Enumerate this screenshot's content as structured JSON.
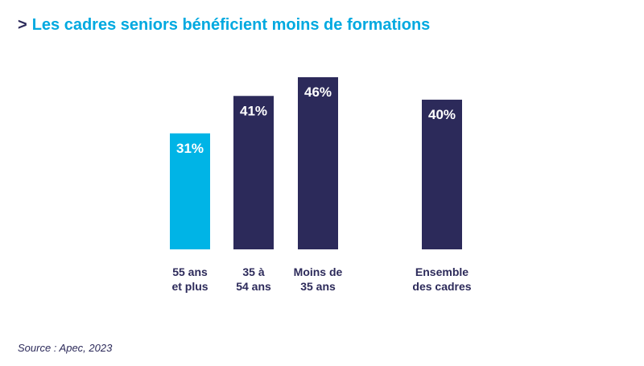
{
  "title": {
    "arrow": ">",
    "text": "Les cadres seniors bénéficient moins de formations"
  },
  "source": "Source : Apec, 2023",
  "colors": {
    "highlight": "#00b4e6",
    "bar": "#2c2a5a",
    "title": "#00a9e0",
    "text": "#2c2a5a",
    "label_on_bar": "#ffffff"
  },
  "chart_data": {
    "type": "bar",
    "title": "Les cadres seniors bénéficient moins de formations",
    "categories": [
      {
        "lines": [
          "55 ans",
          "et plus"
        ],
        "value": 31,
        "label": "31%",
        "highlight": true
      },
      {
        "lines": [
          "35 à",
          "54 ans"
        ],
        "value": 41,
        "label": "41%",
        "highlight": false
      },
      {
        "lines": [
          "Moins de",
          "35 ans"
        ],
        "value": 46,
        "label": "46%",
        "highlight": false
      },
      {
        "lines": [
          "Ensemble",
          "des cadres"
        ],
        "value": 40,
        "label": "40%",
        "highlight": false
      }
    ],
    "unit": "%",
    "ylim": [
      0,
      46
    ],
    "xlabel": "",
    "ylabel": "",
    "grid": false,
    "legend": "none"
  }
}
